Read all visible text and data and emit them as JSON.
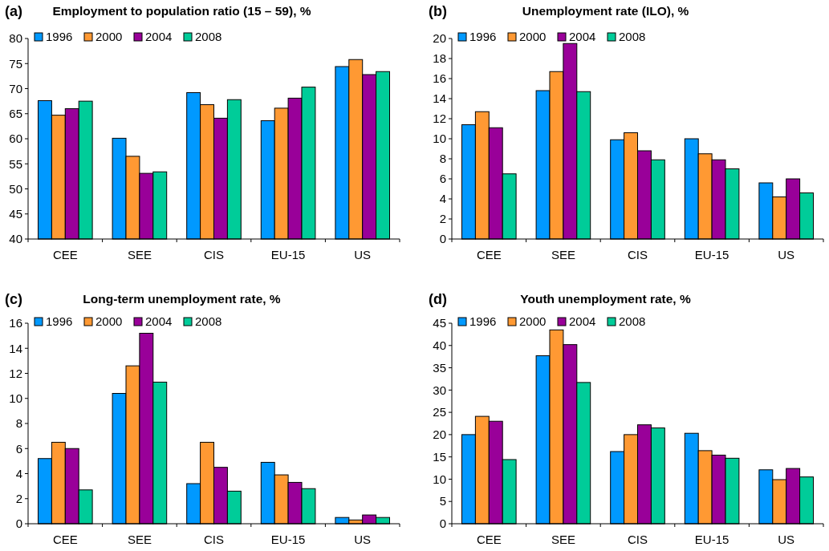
{
  "chart_data": [
    {
      "type": "bar",
      "title": "Employment to population ratio (15 – 59), %",
      "annotations": [
        "(a)"
      ],
      "categories": [
        "CEE",
        "SEE",
        "CIS",
        "EU-15",
        "US"
      ],
      "legend": "top left",
      "grid": false,
      "ylim": [
        40,
        80
      ],
      "yticks": [
        40,
        45,
        50,
        55,
        60,
        65,
        70,
        75,
        80
      ],
      "series": [
        {
          "name": "1996",
          "color": "#0099ff",
          "values": [
            67.6,
            60.1,
            69.2,
            63.6,
            74.4
          ]
        },
        {
          "name": "2000",
          "color": "#ff9933",
          "values": [
            64.7,
            56.5,
            66.8,
            66.1,
            75.8
          ]
        },
        {
          "name": "2004",
          "color": "#990099",
          "values": [
            66.0,
            53.1,
            64.1,
            68.1,
            72.8
          ]
        },
        {
          "name": "2008",
          "color": "#00cc99",
          "values": [
            67.5,
            53.4,
            67.8,
            70.3,
            73.4
          ]
        }
      ]
    },
    {
      "type": "bar",
      "title": "Unemployment rate (ILO), %",
      "annotations": [
        "(b)"
      ],
      "categories": [
        "CEE",
        "SEE",
        "CIS",
        "EU-15",
        "US"
      ],
      "legend": "top left",
      "grid": false,
      "ylim": [
        0,
        20
      ],
      "yticks": [
        0,
        2,
        4,
        6,
        8,
        10,
        12,
        14,
        16,
        18,
        20
      ],
      "series": [
        {
          "name": "1996",
          "color": "#0099ff",
          "values": [
            11.4,
            14.8,
            9.9,
            10.0,
            5.6
          ]
        },
        {
          "name": "2000",
          "color": "#ff9933",
          "values": [
            12.7,
            16.7,
            10.6,
            8.5,
            4.2
          ]
        },
        {
          "name": "2004",
          "color": "#990099",
          "values": [
            11.1,
            19.5,
            8.8,
            7.9,
            6.0
          ]
        },
        {
          "name": "2008",
          "color": "#00cc99",
          "values": [
            6.5,
            14.7,
            7.9,
            7.0,
            4.6
          ]
        }
      ]
    },
    {
      "type": "bar",
      "title": "Long-term unemployment rate, %",
      "annotations": [
        "(c)"
      ],
      "categories": [
        "CEE",
        "SEE",
        "CIS",
        "EU-15",
        "US"
      ],
      "legend": "top left",
      "grid": false,
      "ylim": [
        0,
        16
      ],
      "yticks": [
        0,
        2,
        4,
        6,
        8,
        10,
        12,
        14,
        16
      ],
      "series": [
        {
          "name": "1996",
          "color": "#0099ff",
          "values": [
            5.2,
            10.4,
            3.2,
            4.9,
            0.5
          ]
        },
        {
          "name": "2000",
          "color": "#ff9933",
          "values": [
            6.5,
            12.6,
            6.5,
            3.9,
            0.3
          ]
        },
        {
          "name": "2004",
          "color": "#990099",
          "values": [
            6.0,
            15.2,
            4.5,
            3.3,
            0.7
          ]
        },
        {
          "name": "2008",
          "color": "#00cc99",
          "values": [
            2.7,
            11.3,
            2.6,
            2.8,
            0.5
          ]
        }
      ]
    },
    {
      "type": "bar",
      "title": "Youth unemployment rate, %",
      "annotations": [
        "(d)"
      ],
      "categories": [
        "CEE",
        "SEE",
        "CIS",
        "EU-15",
        "US"
      ],
      "legend": "top left",
      "grid": false,
      "ylim": [
        0,
        45
      ],
      "yticks": [
        0,
        5,
        10,
        15,
        20,
        25,
        30,
        35,
        40,
        45
      ],
      "series": [
        {
          "name": "1996",
          "color": "#0099ff",
          "values": [
            20.0,
            37.7,
            16.2,
            20.3,
            12.1
          ]
        },
        {
          "name": "2000",
          "color": "#ff9933",
          "values": [
            24.1,
            43.5,
            20.0,
            16.4,
            9.9
          ]
        },
        {
          "name": "2004",
          "color": "#990099",
          "values": [
            23.0,
            40.2,
            22.2,
            15.4,
            12.4
          ]
        },
        {
          "name": "2008",
          "color": "#00cc99",
          "values": [
            14.4,
            31.7,
            21.5,
            14.7,
            10.5
          ]
        }
      ]
    }
  ]
}
